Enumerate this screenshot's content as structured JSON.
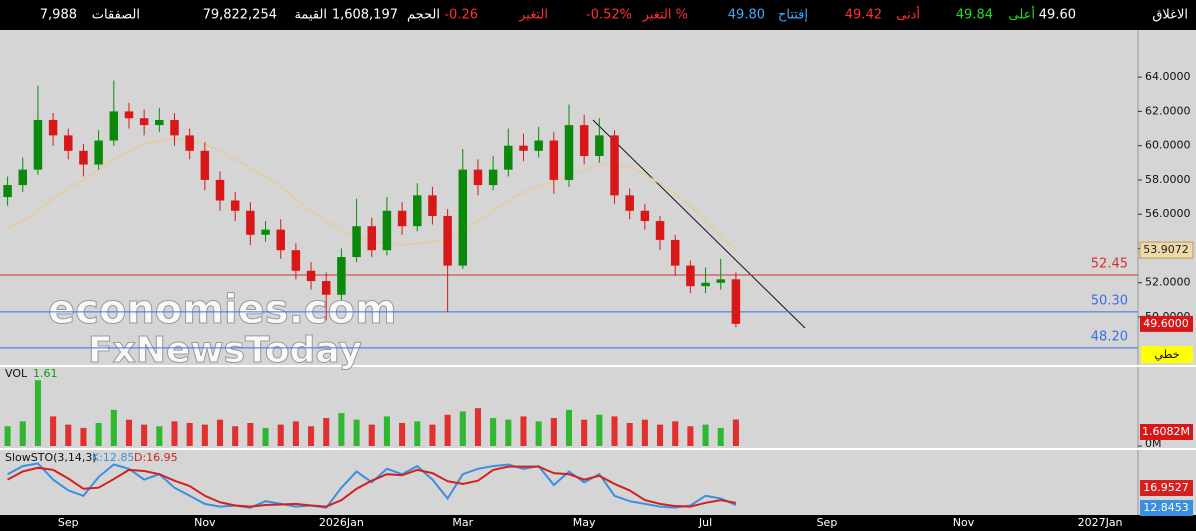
{
  "chart_data": {
    "type": "candlestick",
    "header": [
      {
        "label": "الاغلاق",
        "value": "49.60",
        "color": "#ffffff"
      },
      {
        "label": "أعلى",
        "value": "49.84",
        "color": "#22dd22"
      },
      {
        "label": "أدنى",
        "value": "49.42",
        "color": "#ff3030"
      },
      {
        "label": "إفتتاح",
        "value": "49.80",
        "color": "#40a8ff"
      },
      {
        "label": "التغير %",
        "value": "-0.52%",
        "color": "#ff3030"
      },
      {
        "label": "التغير",
        "value": "-0.26",
        "color": "#ff3030"
      },
      {
        "label": "الحجم",
        "value": "1,608,197",
        "color": "#ffffff"
      },
      {
        "label": "القيمة",
        "value": "79,822,254",
        "color": "#ffffff"
      },
      {
        "label": "الصفقات",
        "value": "7,988",
        "color": "#ffffff"
      }
    ],
    "categories": [
      null,
      null,
      null,
      null,
      "Sep",
      null,
      null,
      null,
      null,
      null,
      null,
      null,
      null,
      "Nov",
      null,
      null,
      null,
      null,
      null,
      null,
      null,
      null,
      "2026Jan",
      null,
      null,
      null,
      null,
      null,
      null,
      null,
      "Mar",
      null,
      null,
      null,
      null,
      null,
      null,
      null,
      "May",
      null,
      null,
      null,
      null,
      null,
      null,
      null,
      "Jul",
      null,
      null,
      null,
      null,
      null,
      null,
      null,
      "Sep",
      null,
      null,
      null,
      null,
      null,
      null,
      null,
      null,
      "Nov",
      null,
      null,
      null,
      null,
      null,
      null,
      null,
      null,
      "2027Jan",
      null,
      null
    ],
    "ylim": [
      47.2,
      66.75
    ],
    "yticks": [
      {
        "value": 50,
        "label": "50.0000"
      },
      {
        "value": 52,
        "label": "52.0000"
      },
      {
        "value": 54,
        "label": "54.0000"
      },
      {
        "value": 56,
        "label": "56.0000"
      },
      {
        "value": 58,
        "label": "58.0000"
      },
      {
        "value": 60,
        "label": "60.0000"
      },
      {
        "value": 62,
        "label": "62.0000"
      },
      {
        "value": 64,
        "label": "64.0000"
      }
    ],
    "up_color": "#0a8a0a",
    "down_color": "#d81818",
    "open": [
      57.0,
      57.7,
      58.6,
      61.5,
      60.6,
      59.7,
      58.9,
      60.3,
      62.0,
      61.6,
      61.2,
      61.5,
      60.6,
      59.7,
      58.0,
      56.8,
      56.2,
      54.8,
      55.1,
      53.9,
      52.7,
      52.1,
      51.3,
      53.5,
      55.3,
      53.9,
      56.2,
      55.3,
      57.1,
      55.9,
      53.0,
      58.6,
      57.7,
      58.6,
      60.0,
      59.7,
      60.3,
      58.0,
      61.2,
      59.4,
      60.6,
      57.1,
      56.2,
      55.6,
      54.5,
      53.0,
      51.8,
      52.0,
      52.2,
      null,
      null,
      null,
      null,
      null,
      null,
      null,
      null,
      null,
      null,
      null,
      null,
      null,
      null,
      null,
      null,
      null,
      null,
      null,
      null,
      null,
      null,
      null,
      null,
      null,
      null
    ],
    "high": [
      58.2,
      59.3,
      63.5,
      61.9,
      61.0,
      60.1,
      60.9,
      63.8,
      62.5,
      62.1,
      62.2,
      61.9,
      61.0,
      60.2,
      58.5,
      57.3,
      56.7,
      55.6,
      55.7,
      54.3,
      53.2,
      52.6,
      54.0,
      56.9,
      55.8,
      57.0,
      56.7,
      57.8,
      57.6,
      56.3,
      59.8,
      59.2,
      59.4,
      61.0,
      60.7,
      61.1,
      60.8,
      62.4,
      61.8,
      61.6,
      60.9,
      57.5,
      56.6,
      55.9,
      54.8,
      53.3,
      52.9,
      53.4,
      52.6,
      null,
      null,
      null,
      null,
      null,
      null,
      null,
      null,
      null,
      null,
      null,
      null,
      null,
      null,
      null,
      null,
      null,
      null,
      null,
      null,
      null,
      null,
      null,
      null,
      null,
      null
    ],
    "low": [
      56.5,
      57.3,
      58.3,
      60.0,
      59.2,
      58.2,
      58.6,
      60.0,
      61.0,
      60.6,
      60.8,
      60.0,
      59.2,
      57.4,
      56.2,
      55.6,
      54.2,
      54.4,
      53.4,
      52.2,
      51.6,
      49.8,
      51.0,
      53.2,
      53.5,
      53.6,
      54.8,
      55.0,
      55.4,
      50.3,
      52.8,
      57.1,
      57.4,
      58.2,
      59.1,
      59.3,
      57.2,
      57.6,
      58.9,
      59.0,
      56.6,
      55.7,
      55.1,
      53.9,
      52.4,
      51.4,
      51.4,
      51.6,
      49.4,
      null,
      null,
      null,
      null,
      null,
      null,
      null,
      null,
      null,
      null,
      null,
      null,
      null,
      null,
      null,
      null,
      null,
      null,
      null,
      null,
      null,
      null,
      null,
      null,
      null,
      null
    ],
    "close": [
      57.7,
      58.6,
      61.5,
      60.6,
      59.7,
      58.9,
      60.3,
      62.0,
      61.6,
      61.2,
      61.5,
      60.6,
      59.7,
      58.0,
      56.8,
      56.2,
      54.8,
      55.1,
      53.9,
      52.7,
      52.1,
      51.3,
      53.5,
      55.3,
      53.9,
      56.2,
      55.3,
      57.1,
      55.9,
      53.0,
      58.6,
      57.7,
      58.6,
      60.0,
      59.7,
      60.3,
      58.0,
      61.2,
      59.4,
      60.6,
      57.1,
      56.2,
      55.6,
      54.5,
      53.0,
      51.8,
      52.0,
      52.2,
      49.6,
      null,
      null,
      null,
      null,
      null,
      null,
      null,
      null,
      null,
      null,
      null,
      null,
      null,
      null,
      null,
      null,
      null,
      null,
      null,
      null,
      null,
      null,
      null,
      null,
      null,
      null
    ],
    "price_tag": "49.6000",
    "sma": {
      "color": "#e8cb98",
      "tag": "53.9072",
      "values": [
        55.2,
        55.6,
        56.2,
        56.9,
        57.5,
        58.0,
        58.6,
        59.2,
        59.7,
        60.1,
        60.3,
        60.4,
        60.3,
        60.1,
        59.7,
        59.2,
        58.7,
        58.2,
        57.6,
        56.9,
        56.2,
        55.6,
        55.1,
        54.7,
        54.4,
        54.3,
        54.2,
        54.3,
        54.4,
        54.5,
        55.0,
        55.6,
        56.2,
        56.8,
        57.3,
        57.6,
        57.9,
        58.3,
        58.6,
        58.9,
        58.9,
        58.7,
        58.3,
        57.8,
        57.2,
        56.5,
        55.6,
        54.7,
        53.9072,
        null,
        null,
        null,
        null,
        null,
        null,
        null,
        null,
        null,
        null,
        null,
        null,
        null,
        null,
        null,
        null,
        null,
        null,
        null,
        null,
        null,
        null,
        null,
        null,
        null,
        null
      ]
    },
    "levels": [
      {
        "value": 52.45,
        "label": "52.45",
        "color": "#d83030"
      },
      {
        "value": 50.3,
        "label": "50.30",
        "color": "#3a6ee8"
      },
      {
        "value": 48.2,
        "label": "48.20",
        "color": "#3a6ee8"
      }
    ],
    "button": "خطي",
    "watermark": [
      "economies.com",
      "FxNewsToday"
    ],
    "volume": {
      "name": "VOL",
      "last_label": "1.61",
      "tag": "1.6082M",
      "ylim": [
        0,
        4.5
      ],
      "yticks": [
        {
          "value": 0,
          "label": "0M"
        }
      ],
      "values": [
        1.2,
        1.5,
        4.0,
        1.8,
        1.3,
        1.1,
        1.4,
        2.2,
        1.6,
        1.3,
        1.2,
        1.5,
        1.4,
        1.3,
        1.6,
        1.2,
        1.4,
        1.1,
        1.3,
        1.5,
        1.2,
        1.7,
        2.0,
        1.6,
        1.3,
        1.8,
        1.4,
        1.5,
        1.3,
        1.9,
        2.1,
        2.3,
        1.7,
        1.6,
        1.8,
        1.5,
        1.7,
        2.2,
        1.6,
        1.9,
        1.8,
        1.4,
        1.6,
        1.3,
        1.5,
        1.2,
        1.3,
        1.1,
        1.6082,
        null,
        null,
        null,
        null,
        null,
        null,
        null,
        null,
        null,
        null,
        null,
        null,
        null,
        null,
        null,
        null,
        null,
        null,
        null,
        null,
        null,
        null,
        null,
        null,
        null,
        null
      ]
    },
    "stochastic": {
      "name": "SlowSTO(3,14,3)",
      "ylim": [
        0,
        100
      ],
      "series": [
        {
          "label": "K:12.85",
          "tag": "12.8453",
          "color": "#3a8fe0",
          "values": [
            70,
            85,
            90,
            60,
            40,
            30,
            65,
            88,
            80,
            60,
            70,
            45,
            30,
            15,
            10,
            12,
            8,
            20,
            15,
            10,
            12,
            8,
            45,
            75,
            55,
            80,
            70,
            85,
            60,
            25,
            70,
            80,
            85,
            88,
            80,
            85,
            50,
            75,
            55,
            70,
            30,
            20,
            15,
            10,
            8,
            12,
            30,
            25,
            12.8453,
            null,
            null,
            null,
            null,
            null,
            null,
            null,
            null,
            null,
            null,
            null,
            null,
            null,
            null,
            null,
            null,
            null,
            null,
            null,
            null,
            null,
            null,
            null,
            null,
            null,
            null
          ]
        },
        {
          "label": "D:16.95",
          "tag": "16.9527",
          "color": "#d42020",
          "values": [
            60,
            75,
            82,
            78,
            62,
            43,
            45,
            61,
            78,
            76,
            70,
            58,
            48,
            30,
            18,
            12,
            10,
            13,
            14,
            15,
            12,
            10,
            22,
            43,
            58,
            70,
            68,
            78,
            72,
            57,
            52,
            58,
            78,
            84,
            84,
            84,
            72,
            70,
            60,
            67,
            52,
            40,
            22,
            15,
            11,
            10,
            17,
            22,
            16.9527,
            null,
            null,
            null,
            null,
            null,
            null,
            null,
            null,
            null,
            null,
            null,
            null,
            null,
            null,
            null,
            null,
            null,
            null,
            null,
            null,
            null,
            null,
            null,
            null,
            null,
            null
          ]
        }
      ]
    }
  }
}
